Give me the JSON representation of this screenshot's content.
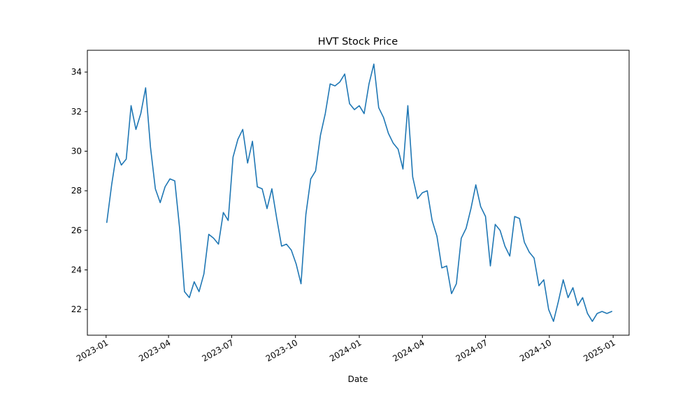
{
  "chart_data": {
    "type": "line",
    "title": "HVT Stock Price",
    "xlabel": "Date",
    "ylabel": "",
    "grid": false,
    "legend": "none",
    "xlim": [
      "2022-12-05",
      "2025-01-24"
    ],
    "ylim": [
      20.7,
      35.1
    ],
    "x_ticks": [
      "2023-01",
      "2023-04",
      "2023-07",
      "2023-10",
      "2024-01",
      "2024-04",
      "2024-07",
      "2024-10",
      "2025-01"
    ],
    "y_ticks": [
      22,
      24,
      26,
      28,
      30,
      32,
      34
    ],
    "colors": {
      "line": "#1f77b4"
    },
    "series": [
      {
        "x": [
          "2023-01-02",
          "2023-01-09",
          "2023-01-16",
          "2023-01-23",
          "2023-01-30",
          "2023-02-06",
          "2023-02-13",
          "2023-02-20",
          "2023-02-27",
          "2023-03-06",
          "2023-03-13",
          "2023-03-20",
          "2023-03-27",
          "2023-04-03",
          "2023-04-10",
          "2023-04-17",
          "2023-04-24",
          "2023-05-01",
          "2023-05-08",
          "2023-05-15",
          "2023-05-22",
          "2023-05-29",
          "2023-06-05",
          "2023-06-12",
          "2023-06-19",
          "2023-06-26",
          "2023-07-03",
          "2023-07-10",
          "2023-07-17",
          "2023-07-24",
          "2023-07-31",
          "2023-08-07",
          "2023-08-14",
          "2023-08-21",
          "2023-08-28",
          "2023-09-04",
          "2023-09-11",
          "2023-09-18",
          "2023-09-25",
          "2023-10-02",
          "2023-10-09",
          "2023-10-16",
          "2023-10-23",
          "2023-10-30",
          "2023-11-06",
          "2023-11-13",
          "2023-11-20",
          "2023-11-27",
          "2023-12-04",
          "2023-12-11",
          "2023-12-18",
          "2023-12-25",
          "2024-01-01",
          "2024-01-08",
          "2024-01-15",
          "2024-01-22",
          "2024-01-29",
          "2024-02-05",
          "2024-02-12",
          "2024-02-19",
          "2024-02-26",
          "2024-03-04",
          "2024-03-11",
          "2024-03-18",
          "2024-03-25",
          "2024-04-01",
          "2024-04-08",
          "2024-04-15",
          "2024-04-22",
          "2024-04-29",
          "2024-05-06",
          "2024-05-13",
          "2024-05-20",
          "2024-05-27",
          "2024-06-03",
          "2024-06-10",
          "2024-06-17",
          "2024-06-24",
          "2024-07-01",
          "2024-07-08",
          "2024-07-15",
          "2024-07-22",
          "2024-07-29",
          "2024-08-05",
          "2024-08-12",
          "2024-08-19",
          "2024-08-26",
          "2024-09-02",
          "2024-09-09",
          "2024-09-16",
          "2024-09-23",
          "2024-09-30",
          "2024-10-07",
          "2024-10-14",
          "2024-10-21",
          "2024-10-28",
          "2024-11-04",
          "2024-11-11",
          "2024-11-18",
          "2024-11-25",
          "2024-12-02",
          "2024-12-09",
          "2024-12-16",
          "2024-12-23",
          "2024-12-30"
        ],
        "y": [
          26.4,
          28.3,
          29.9,
          29.3,
          29.6,
          32.3,
          31.1,
          31.9,
          33.2,
          30.2,
          28.1,
          27.4,
          28.2,
          28.6,
          28.5,
          26.1,
          22.9,
          22.6,
          23.4,
          22.9,
          23.8,
          25.8,
          25.6,
          25.3,
          26.9,
          26.5,
          29.7,
          30.6,
          31.1,
          29.4,
          30.5,
          28.2,
          28.1,
          27.1,
          28.1,
          26.6,
          25.2,
          25.3,
          25.0,
          24.3,
          23.3,
          26.8,
          28.6,
          29.0,
          30.8,
          31.9,
          33.4,
          33.3,
          33.5,
          33.9,
          32.4,
          32.1,
          32.3,
          31.9,
          33.4,
          34.4,
          32.2,
          31.7,
          30.9,
          30.4,
          30.1,
          29.1,
          32.3,
          28.7,
          27.6,
          27.9,
          28.0,
          26.5,
          25.7,
          24.1,
          24.2,
          22.8,
          23.3,
          25.6,
          26.1,
          27.1,
          28.3,
          27.2,
          26.7,
          24.2,
          26.3,
          26.0,
          25.2,
          24.7,
          26.7,
          26.6,
          25.4,
          24.9,
          24.6,
          23.2,
          23.5,
          22.0,
          21.4,
          22.4,
          23.5,
          22.6,
          23.1,
          22.2,
          22.6,
          21.8,
          21.4,
          21.8,
          21.9,
          21.8,
          21.9
        ]
      }
    ]
  }
}
